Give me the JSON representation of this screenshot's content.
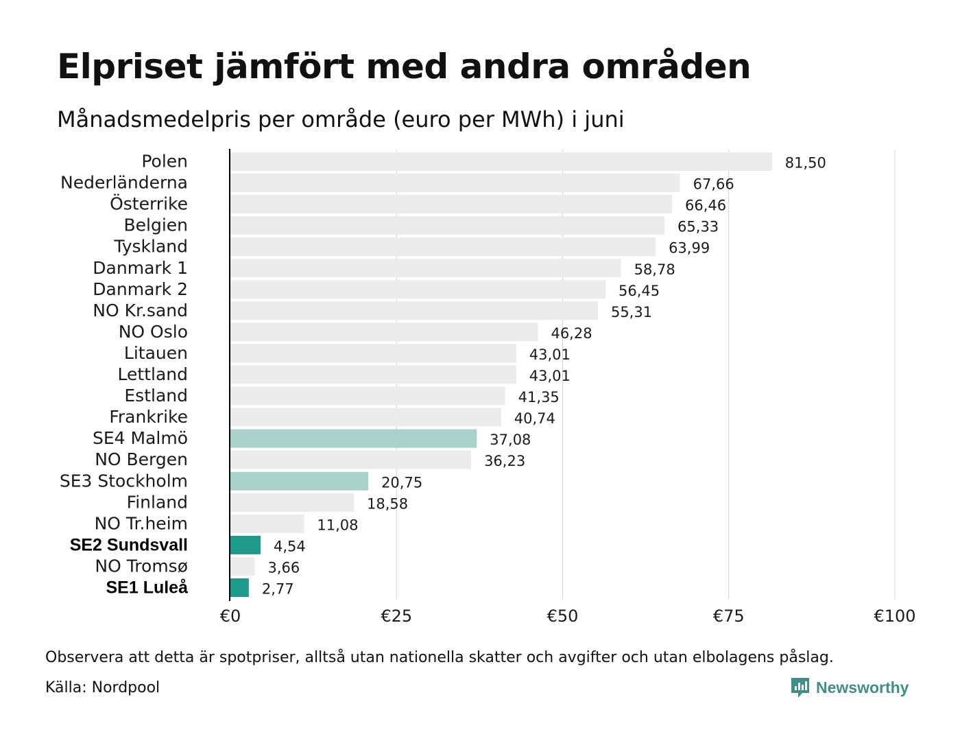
{
  "header": {
    "title": "Elpriset jämfört med andra områden",
    "subtitle": "Månadsmedelpris per område (euro per MWh) i juni"
  },
  "chart_data": {
    "type": "bar",
    "orientation": "horizontal",
    "xlim": [
      0,
      100
    ],
    "x_ticks": [
      0,
      25,
      50,
      75,
      100
    ],
    "x_tick_labels": [
      "€0",
      "€25",
      "€50",
      "€75",
      "€100"
    ],
    "grid": true,
    "colors": {
      "default": "#ebebeb",
      "highlight_light": "#a8d1c9",
      "highlight_dark": "#1d9a8a"
    },
    "categories": [
      "Polen",
      "Nederländerna",
      "Österrike",
      "Belgien",
      "Tyskland",
      "Danmark  1",
      "Danmark  2",
      "NO Kr.sand",
      "NO Oslo",
      "Litauen",
      "Lettland",
      "Estland",
      "Frankrike",
      "SE4  Malmö",
      "NO Bergen",
      "SE3  Stockholm",
      "Finland",
      "NO Tr.heim",
      "SE2 Sundsvall",
      "NO Tromsø",
      "SE1 Luleå"
    ],
    "values": [
      81.5,
      67.66,
      66.46,
      65.33,
      63.99,
      58.78,
      56.45,
      55.31,
      46.28,
      43.01,
      43.01,
      41.35,
      40.74,
      37.08,
      36.23,
      20.75,
      18.58,
      11.08,
      4.54,
      3.66,
      2.77
    ],
    "value_labels": [
      "81,50",
      "67,66",
      "66,46",
      "65,33",
      "63,99",
      "58,78",
      "56,45",
      "55,31",
      "46,28",
      "43,01",
      "43,01",
      "41,35",
      "40,74",
      "37,08",
      "36,23",
      "20,75",
      "18,58",
      "11,08",
      "4,54",
      "3,66",
      "2,77"
    ],
    "highlight": [
      "",
      "",
      "",
      "",
      "",
      "",
      "",
      "",
      "",
      "",
      "",
      "",
      "",
      "light",
      "",
      "light",
      "",
      "",
      "dark",
      "",
      "dark"
    ]
  },
  "footer": {
    "note": "Observera att detta är spotpriser, alltså utan nationella skatter och avgifter och utan elbolagens påslag.",
    "source": "Källa: Nordpool",
    "brand": "Newsworthy"
  }
}
